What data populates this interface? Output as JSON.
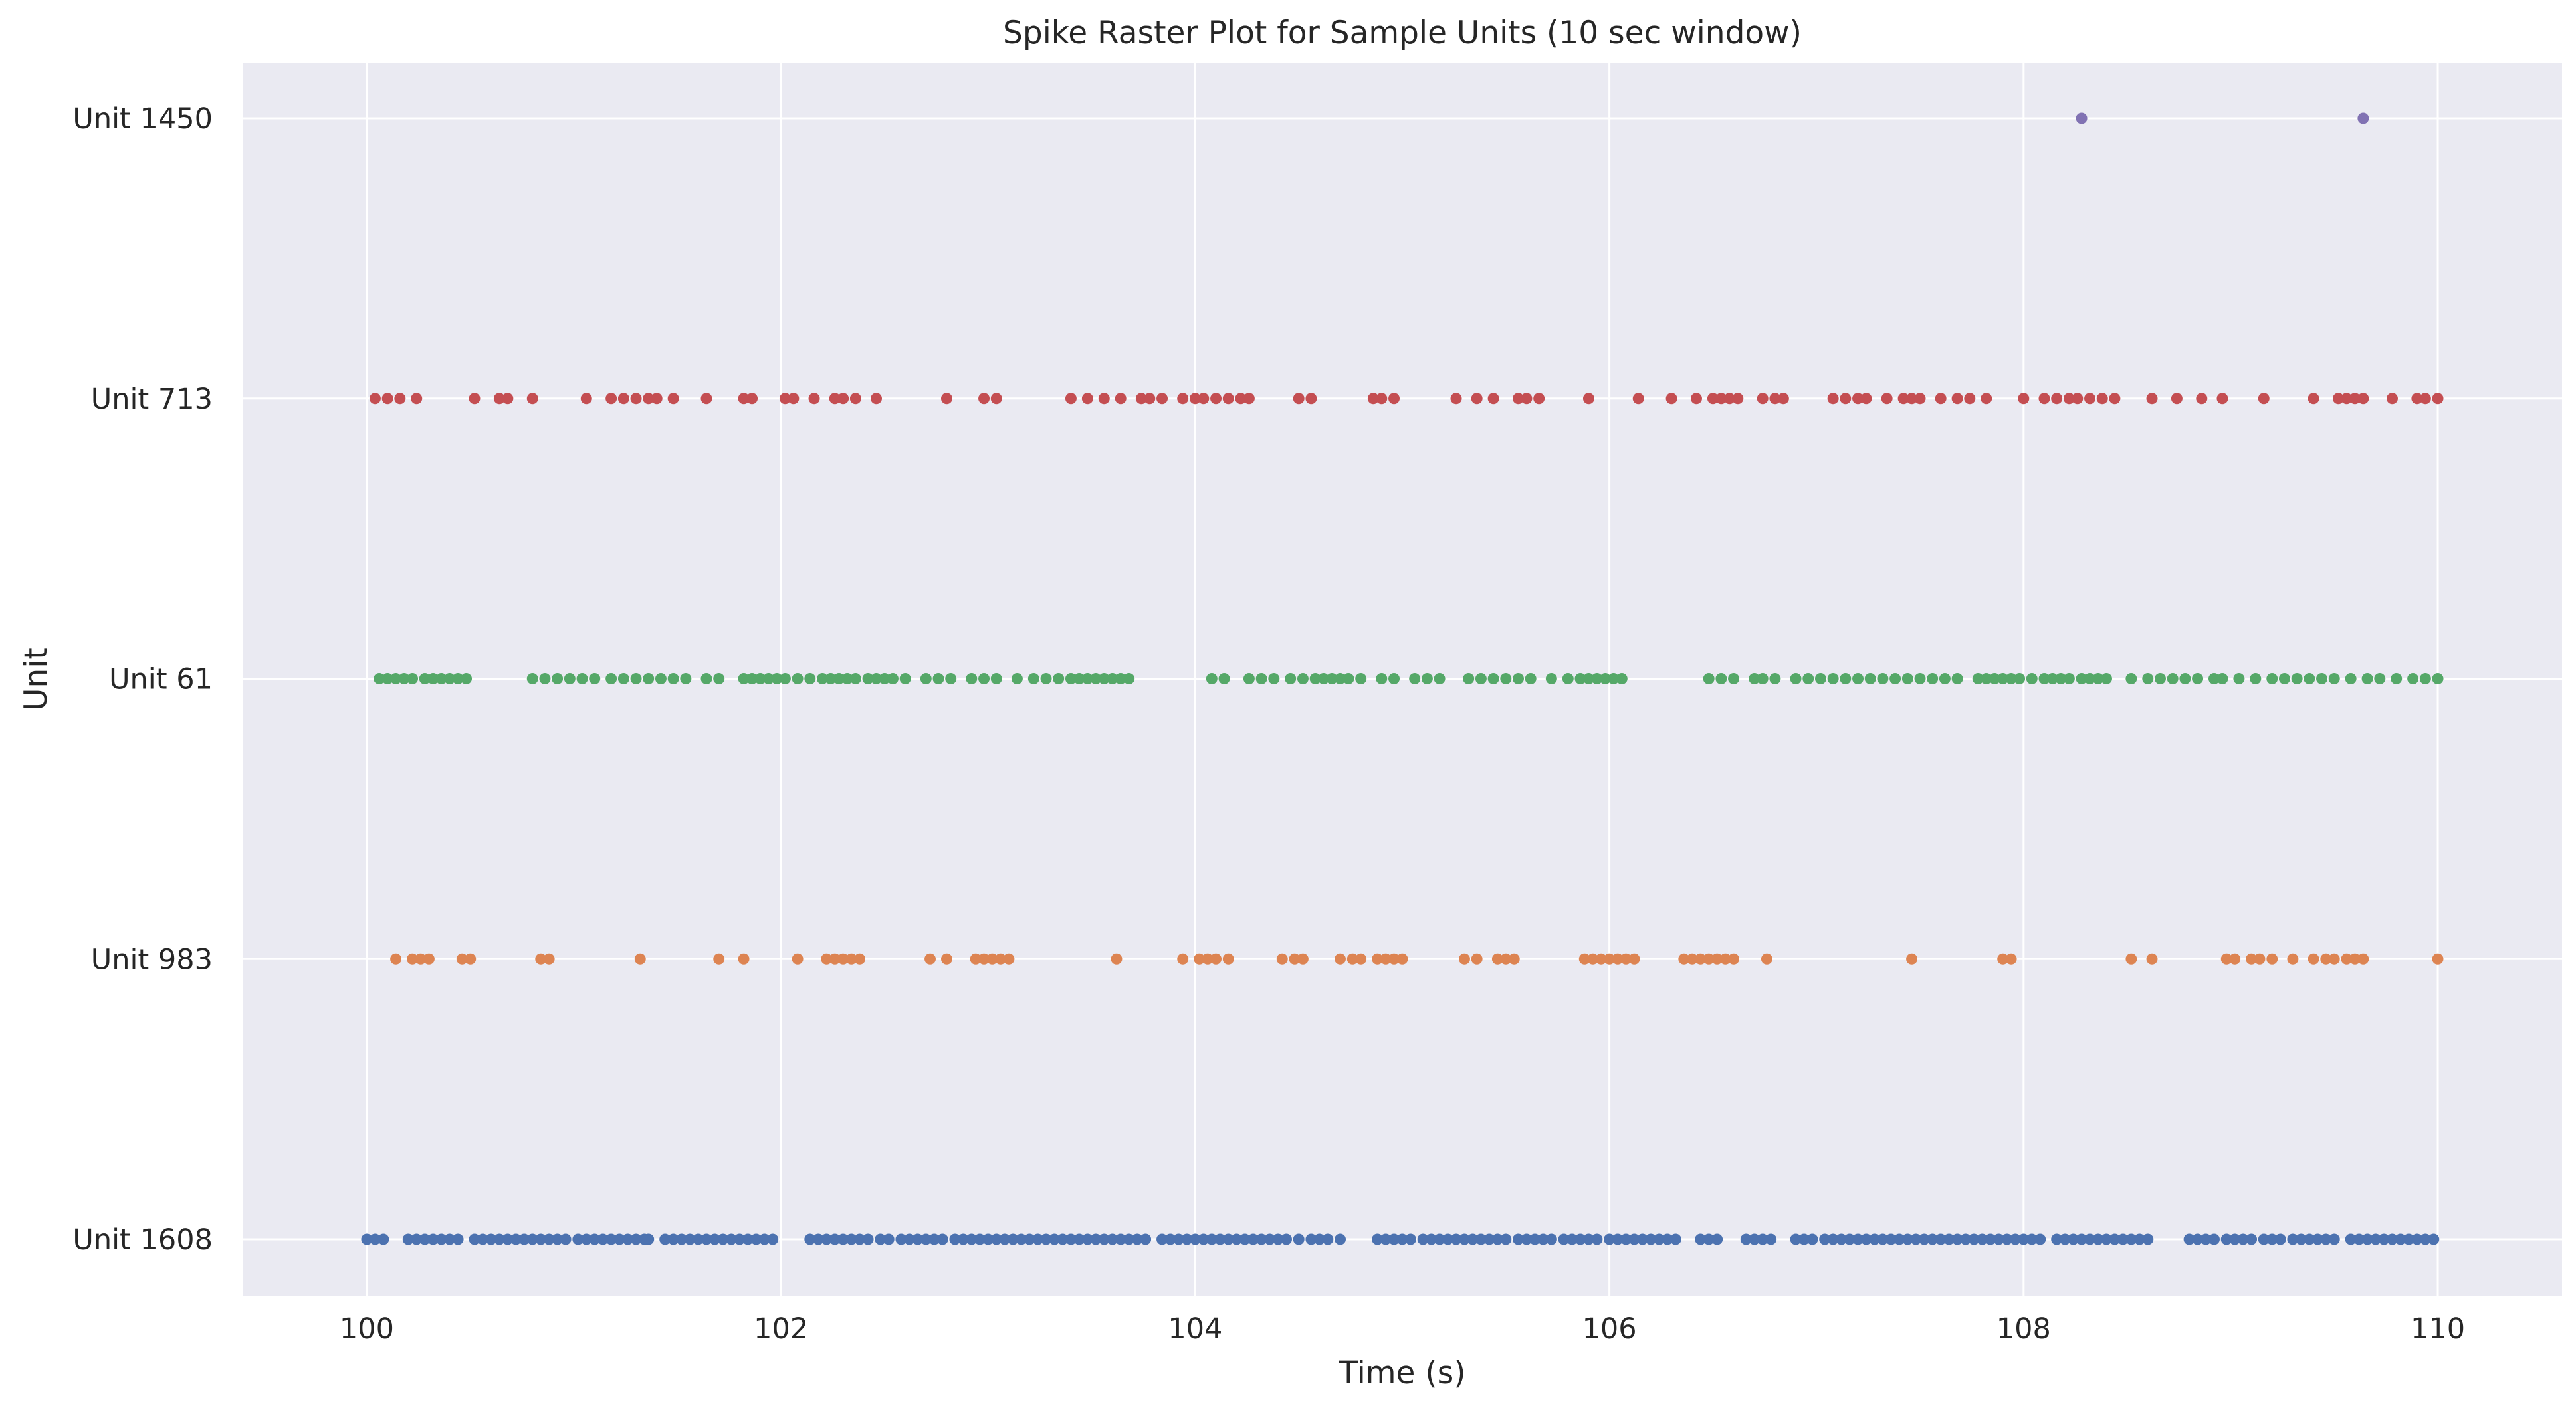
{
  "chart_data": {
    "type": "scatter",
    "title": "Spike Raster Plot for Sample Units (10 sec window)",
    "xlabel": "Time (s)",
    "ylabel": "Unit",
    "xlim": [
      99.4,
      110.6
    ],
    "xticks": [
      100,
      102,
      104,
      106,
      108,
      110
    ],
    "grid": true,
    "legend": "none",
    "background_color": "#EAEAF2",
    "grid_color": "#FFFFFF",
    "units": [
      "Unit 1608",
      "Unit 983",
      "Unit 61",
      "Unit 713",
      "Unit 1450"
    ],
    "series": [
      {
        "name": "Unit 1608",
        "color": "#4C72B0",
        "spike_times": [
          100.0,
          100.04,
          100.08,
          100.2,
          100.24,
          100.28,
          100.32,
          100.36,
          100.4,
          100.44,
          100.52,
          100.56,
          100.6,
          100.64,
          100.68,
          100.72,
          100.76,
          100.8,
          100.84,
          100.88,
          100.92,
          100.96,
          101.02,
          101.06,
          101.1,
          101.14,
          101.18,
          101.22,
          101.26,
          101.3,
          101.34,
          101.36,
          101.44,
          101.48,
          101.52,
          101.56,
          101.6,
          101.64,
          101.68,
          101.72,
          101.76,
          101.8,
          101.84,
          101.88,
          101.92,
          101.96,
          102.14,
          102.18,
          102.22,
          102.26,
          102.3,
          102.34,
          102.38,
          102.42,
          102.48,
          102.52,
          102.58,
          102.62,
          102.66,
          102.7,
          102.74,
          102.78,
          102.84,
          102.88,
          102.92,
          102.96,
          103.0,
          103.04,
          103.08,
          103.12,
          103.16,
          103.2,
          103.24,
          103.28,
          103.32,
          103.36,
          103.4,
          103.44,
          103.48,
          103.52,
          103.56,
          103.6,
          103.64,
          103.68,
          103.72,
          103.76,
          103.84,
          103.88,
          103.92,
          103.96,
          104.0,
          104.04,
          104.08,
          104.12,
          104.16,
          104.2,
          104.24,
          104.28,
          104.32,
          104.36,
          104.4,
          104.44,
          104.5,
          104.56,
          104.6,
          104.64,
          104.7,
          104.88,
          104.92,
          104.96,
          105.0,
          105.04,
          105.1,
          105.14,
          105.18,
          105.22,
          105.26,
          105.3,
          105.34,
          105.38,
          105.42,
          105.46,
          105.5,
          105.56,
          105.6,
          105.64,
          105.68,
          105.72,
          105.78,
          105.82,
          105.86,
          105.9,
          105.94,
          106.0,
          106.04,
          106.08,
          106.12,
          106.16,
          106.2,
          106.24,
          106.28,
          106.32,
          106.44,
          106.48,
          106.52,
          106.66,
          106.7,
          106.74,
          106.78,
          106.9,
          106.94,
          106.98,
          107.04,
          107.08,
          107.12,
          107.16,
          107.2,
          107.24,
          107.28,
          107.32,
          107.36,
          107.4,
          107.44,
          107.48,
          107.52,
          107.56,
          107.6,
          107.64,
          107.68,
          107.72,
          107.76,
          107.8,
          107.84,
          107.88,
          107.92,
          107.96,
          108.0,
          108.04,
          108.08,
          108.16,
          108.2,
          108.24,
          108.28,
          108.32,
          108.36,
          108.4,
          108.44,
          108.48,
          108.52,
          108.56,
          108.6,
          108.8,
          108.84,
          108.88,
          108.92,
          108.98,
          109.02,
          109.06,
          109.1,
          109.16,
          109.2,
          109.24,
          109.3,
          109.34,
          109.38,
          109.42,
          109.46,
          109.5,
          109.58,
          109.62,
          109.66,
          109.7,
          109.74,
          109.78,
          109.82,
          109.86,
          109.9,
          109.94,
          109.98
        ],
        "marker": "o"
      },
      {
        "name": "Unit 983",
        "color": "#DD8452",
        "spike_times": [
          100.14,
          100.22,
          100.26,
          100.3,
          100.46,
          100.5,
          100.84,
          100.88,
          101.32,
          101.7,
          101.82,
          102.08,
          102.22,
          102.26,
          102.3,
          102.34,
          102.38,
          102.72,
          102.8,
          102.94,
          102.98,
          103.02,
          103.06,
          103.1,
          103.62,
          103.94,
          104.02,
          104.06,
          104.1,
          104.16,
          104.42,
          104.48,
          104.52,
          104.7,
          104.76,
          104.8,
          104.88,
          104.92,
          104.96,
          105.0,
          105.3,
          105.36,
          105.46,
          105.5,
          105.54,
          105.88,
          105.92,
          105.96,
          106.0,
          106.04,
          106.08,
          106.12,
          106.36,
          106.4,
          106.44,
          106.48,
          106.52,
          106.56,
          106.6,
          106.76,
          107.46,
          107.9,
          107.94,
          108.52,
          108.62,
          108.98,
          109.02,
          109.1,
          109.14,
          109.2,
          109.3,
          109.4,
          109.46,
          109.5,
          109.56,
          109.6,
          109.64,
          110.0
        ],
        "marker": "o"
      },
      {
        "name": "Unit 61",
        "color": "#55A868",
        "spike_times": [
          100.06,
          100.1,
          100.14,
          100.18,
          100.22,
          100.28,
          100.32,
          100.36,
          100.4,
          100.44,
          100.48,
          100.8,
          100.86,
          100.92,
          100.98,
          101.04,
          101.1,
          101.18,
          101.24,
          101.3,
          101.36,
          101.42,
          101.48,
          101.54,
          101.64,
          101.7,
          101.82,
          101.86,
          101.9,
          101.94,
          101.98,
          102.02,
          102.08,
          102.14,
          102.2,
          102.24,
          102.28,
          102.32,
          102.36,
          102.42,
          102.46,
          102.5,
          102.54,
          102.6,
          102.7,
          102.76,
          102.82,
          102.92,
          102.98,
          103.04,
          103.14,
          103.22,
          103.28,
          103.34,
          103.4,
          103.44,
          103.48,
          103.52,
          103.56,
          103.6,
          103.64,
          103.68,
          104.08,
          104.14,
          104.26,
          104.32,
          104.38,
          104.46,
          104.52,
          104.58,
          104.62,
          104.66,
          104.7,
          104.74,
          104.8,
          104.9,
          104.96,
          105.06,
          105.12,
          105.18,
          105.32,
          105.38,
          105.44,
          105.5,
          105.56,
          105.62,
          105.72,
          105.8,
          105.86,
          105.9,
          105.94,
          105.98,
          106.02,
          106.06,
          106.48,
          106.54,
          106.6,
          106.7,
          106.74,
          106.8,
          106.9,
          106.96,
          107.02,
          107.08,
          107.14,
          107.2,
          107.26,
          107.32,
          107.38,
          107.44,
          107.5,
          107.56,
          107.62,
          107.68,
          107.78,
          107.82,
          107.86,
          107.9,
          107.94,
          107.98,
          108.04,
          108.1,
          108.14,
          108.18,
          108.22,
          108.28,
          108.32,
          108.36,
          108.4,
          108.52,
          108.6,
          108.66,
          108.72,
          108.78,
          108.84,
          108.92,
          108.96,
          109.04,
          109.12,
          109.2,
          109.26,
          109.32,
          109.38,
          109.44,
          109.5,
          109.58,
          109.66,
          109.72,
          109.8,
          109.88,
          109.94,
          110.0
        ],
        "marker": "o"
      },
      {
        "name": "Unit 713",
        "color": "#C44E52",
        "spike_times": [
          100.04,
          100.1,
          100.16,
          100.24,
          100.52,
          100.64,
          100.68,
          100.8,
          101.06,
          101.18,
          101.24,
          101.3,
          101.36,
          101.4,
          101.48,
          101.64,
          101.82,
          101.86,
          102.02,
          102.06,
          102.16,
          102.26,
          102.3,
          102.36,
          102.46,
          102.8,
          102.98,
          103.04,
          103.4,
          103.48,
          103.56,
          103.64,
          103.74,
          103.78,
          103.84,
          103.94,
          104.0,
          104.04,
          104.1,
          104.16,
          104.22,
          104.26,
          104.5,
          104.56,
          104.86,
          104.9,
          104.96,
          105.26,
          105.36,
          105.44,
          105.56,
          105.6,
          105.66,
          105.9,
          106.14,
          106.3,
          106.42,
          106.5,
          106.54,
          106.58,
          106.62,
          106.74,
          106.8,
          106.84,
          107.08,
          107.14,
          107.2,
          107.24,
          107.34,
          107.42,
          107.46,
          107.5,
          107.6,
          107.68,
          107.74,
          107.82,
          108.0,
          108.1,
          108.16,
          108.22,
          108.26,
          108.32,
          108.38,
          108.44,
          108.62,
          108.74,
          108.86,
          108.96,
          109.16,
          109.4,
          109.52,
          109.56,
          109.6,
          109.64,
          109.78,
          109.9,
          109.94,
          110.0
        ],
        "marker": "o"
      },
      {
        "name": "Unit 1450",
        "color": "#8172B3",
        "spike_times": [
          108.28,
          109.64
        ],
        "marker": "o"
      }
    ]
  }
}
